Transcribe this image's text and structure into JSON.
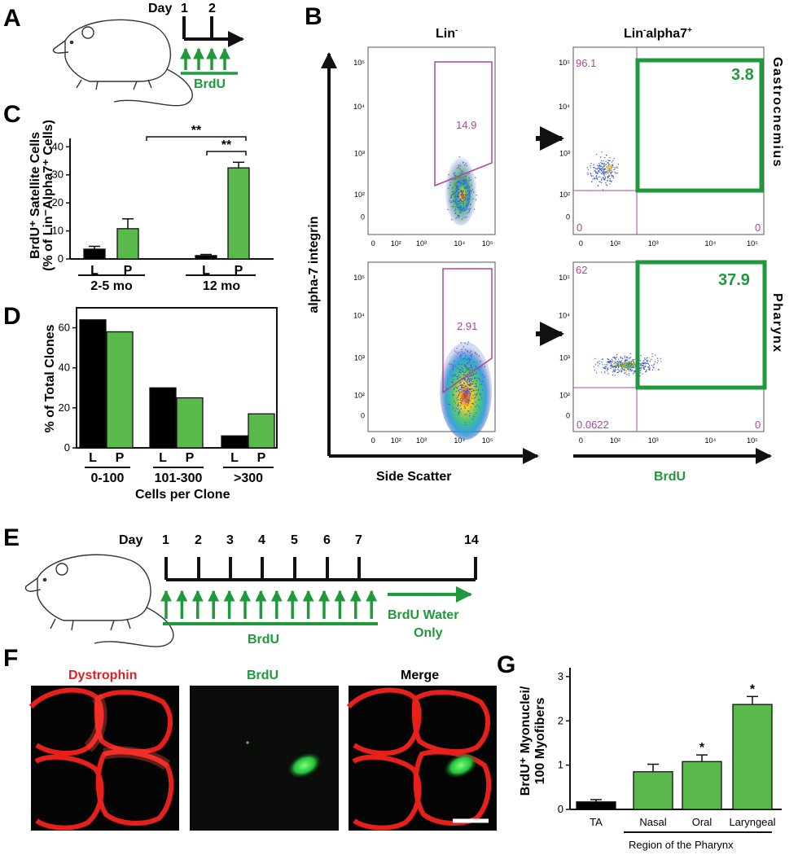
{
  "panels": {
    "A": {
      "label": "A",
      "day_prefix": "Day",
      "days": [
        "1",
        "2"
      ],
      "treatment": "BrdU"
    },
    "B": {
      "label": "B",
      "col_titles": [
        "Lin",
        "Lin alpha7"
      ],
      "y_axis": "alpha-7 integrin",
      "x_axis_left": "Side Scatter",
      "x_axis_right": "BrdU",
      "row_labels": [
        "Gastrocnemius",
        "Pharynx"
      ],
      "ticks_y": [
        "10⁵",
        "10⁴",
        "10³",
        "10²",
        "0"
      ],
      "ticks_x": [
        "0",
        "10²",
        "10³",
        "10⁴",
        "10⁵"
      ],
      "gate_values": [
        "14.9",
        "2.91"
      ],
      "quadrants": [
        {
          "tl": "96.1",
          "tr": "3.8",
          "bl": "0",
          "br": "0"
        },
        {
          "tl": "62",
          "tr": "37.9",
          "bl": "0.0622",
          "br": "0"
        }
      ]
    },
    "C": {
      "label": "C",
      "ylabel_1": "BrdU⁺ Satellite Cells",
      "ylabel_2": "(% of Lin⁻Alpha7⁺ Cells)",
      "sig": [
        "**",
        "**"
      ]
    },
    "D": {
      "label": "D",
      "ylabel": "% of Total Clones",
      "xlabel": "Cells per Clone"
    },
    "E": {
      "label": "E",
      "day_prefix": "Day",
      "days": [
        "1",
        "2",
        "3",
        "4",
        "5",
        "6",
        "7",
        "14"
      ],
      "treatment": "BrdU",
      "water_1": "BrdU Water",
      "water_2": "Only"
    },
    "F": {
      "label": "F",
      "titles": [
        "Dystrophin",
        "BrdU",
        "Merge"
      ]
    },
    "G": {
      "label": "G",
      "ylabel_1": "BrdU⁺ Myonuclei/",
      "ylabel_2": "100 Myofibers",
      "group_label": "Region of the Pharynx",
      "sig": "*"
    }
  },
  "chart_data": [
    {
      "id": "C",
      "type": "bar",
      "title": "",
      "categories": [
        "L",
        "P",
        "L",
        "P"
      ],
      "groups": [
        "2-5 mo",
        "12 mo"
      ],
      "values": [
        3.5,
        10.8,
        1.2,
        32.5
      ],
      "errors": [
        1.0,
        3.5,
        0.4,
        2.0
      ],
      "colors": [
        "#000000",
        "#5ab94b",
        "#000000",
        "#5ab94b"
      ],
      "yticks": [
        0,
        10,
        20,
        30,
        40
      ],
      "ylim": [
        0,
        43
      ]
    },
    {
      "id": "D",
      "type": "bar",
      "title": "",
      "categories": [
        "L",
        "P",
        "L",
        "P",
        "L",
        "P"
      ],
      "groups": [
        "0-100",
        "101-300",
        ">300"
      ],
      "values": [
        64,
        58,
        30,
        25,
        6,
        17
      ],
      "colors": [
        "#000000",
        "#5ab94b",
        "#000000",
        "#5ab94b",
        "#000000",
        "#5ab94b"
      ],
      "yticks": [
        0,
        20,
        40,
        60
      ],
      "ylim": [
        0,
        70
      ]
    },
    {
      "id": "G",
      "type": "bar",
      "title": "",
      "categories": [
        "TA",
        "Nasal",
        "Oral",
        "Laryngeal"
      ],
      "values": [
        0.17,
        0.85,
        1.08,
        2.37
      ],
      "errors": [
        0.05,
        0.17,
        0.15,
        0.18
      ],
      "colors": [
        "#000000",
        "#5ab94b",
        "#5ab94b",
        "#5ab94b"
      ],
      "yticks": [
        0,
        1,
        2,
        3
      ],
      "ylim": [
        0,
        3.2
      ]
    }
  ]
}
